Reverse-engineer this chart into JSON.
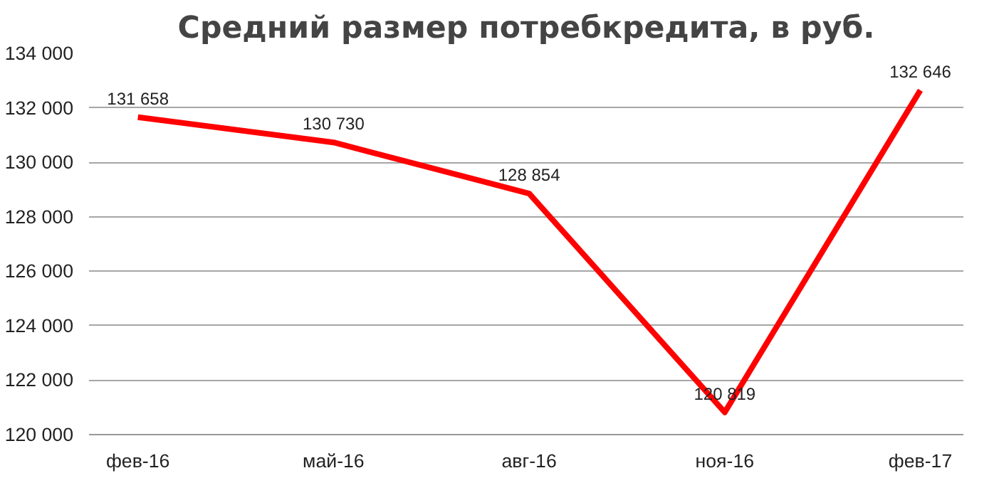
{
  "chart_data": {
    "type": "line",
    "title": "Средний размер потребкредита, в руб.",
    "categories": [
      "фев-16",
      "май-16",
      "авг-16",
      "ноя-16",
      "фев-17"
    ],
    "series": [
      {
        "color": "#ff0000",
        "values": [
          131658,
          130730,
          128854,
          120819,
          132646
        ],
        "value_labels": [
          "131 658",
          "130 730",
          "128 854",
          "120 819",
          "132 646"
        ]
      }
    ],
    "ylim": [
      120000,
      134000
    ],
    "yticks": [
      {
        "value": 120000,
        "label": "120 000"
      },
      {
        "value": 122000,
        "label": "122 000"
      },
      {
        "value": 124000,
        "label": "124 000"
      },
      {
        "value": 126000,
        "label": "126 000"
      },
      {
        "value": 128000,
        "label": "128 000"
      },
      {
        "value": 130000,
        "label": "130 000"
      },
      {
        "value": 132000,
        "label": "132 000"
      },
      {
        "value": 134000,
        "label": "134 000"
      }
    ],
    "grid": "y",
    "marker": "none",
    "line_style": "solid"
  }
}
